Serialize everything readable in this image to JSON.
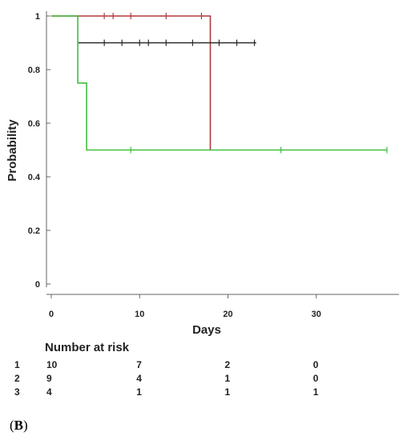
{
  "chart_data": {
    "type": "line",
    "step": true,
    "xlabel": "Days",
    "ylabel": "Probability",
    "xlim": [
      0,
      39
    ],
    "ylim": [
      0,
      1
    ],
    "xticks": [
      0,
      10,
      20,
      30
    ],
    "yticks": [
      0,
      0.2,
      0.4,
      0.6,
      0.8,
      1
    ],
    "grid": false,
    "series": [
      {
        "color": "#b03a3a",
        "steps": [
          [
            0,
            1
          ],
          [
            18,
            1
          ],
          [
            18,
            0.5
          ]
        ],
        "censored": [
          [
            6,
            1
          ],
          [
            7,
            1
          ],
          [
            9,
            1
          ],
          [
            13,
            1
          ],
          [
            17,
            1
          ]
        ]
      },
      {
        "color": "#2b2b2b",
        "steps": [
          [
            3,
            0.9
          ],
          [
            23.2,
            0.9
          ]
        ],
        "censored": [
          [
            6,
            0.9
          ],
          [
            8,
            0.9
          ],
          [
            10,
            0.9
          ],
          [
            11,
            0.9
          ],
          [
            13,
            0.9
          ],
          [
            16,
            0.9
          ],
          [
            19,
            0.9
          ],
          [
            21,
            0.9
          ],
          [
            23,
            0.9
          ]
        ]
      },
      {
        "color": "#3fbf3f",
        "steps": [
          [
            0,
            1
          ],
          [
            3,
            1
          ],
          [
            3,
            0.75
          ],
          [
            4,
            0.75
          ],
          [
            4,
            0.5
          ],
          [
            38,
            0.5
          ]
        ],
        "censored": [
          [
            9,
            0.5
          ],
          [
            26,
            0.5
          ],
          [
            38,
            0.5
          ]
        ]
      }
    ],
    "risk_table": {
      "title": "Number at risk",
      "times": [
        0,
        10,
        20,
        30
      ],
      "rows": [
        {
          "group": "1",
          "counts": [
            "10",
            "7",
            "2",
            "0"
          ]
        },
        {
          "group": "2",
          "counts": [
            "9",
            "4",
            "1",
            "0"
          ]
        },
        {
          "group": "3",
          "counts": [
            "4",
            "1",
            "1",
            "1"
          ]
        }
      ]
    }
  },
  "panel": {
    "open": "(",
    "letter": "B",
    "close": ")"
  }
}
